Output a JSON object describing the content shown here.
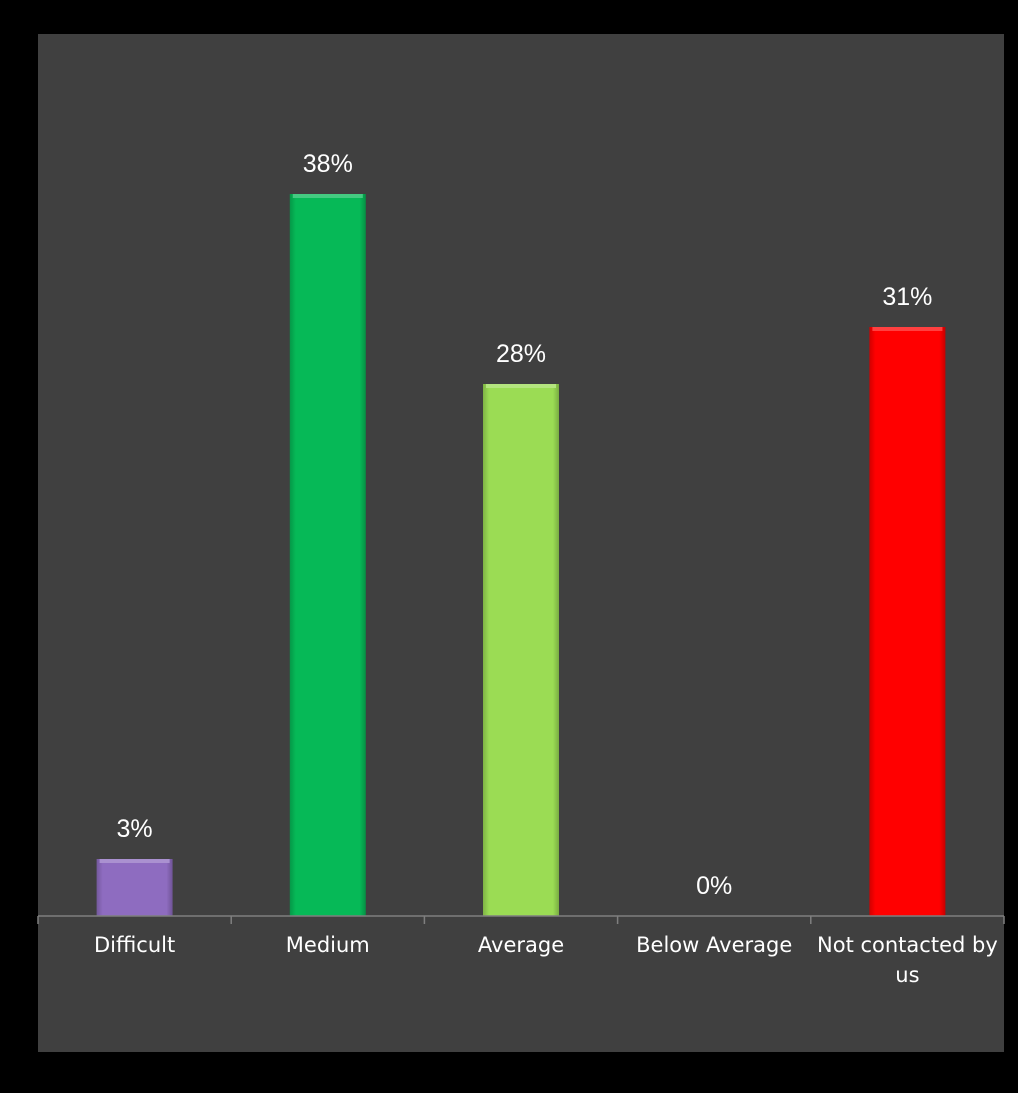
{
  "chart_data": {
    "type": "bar",
    "title": "",
    "xlabel": "",
    "ylabel": "",
    "ylim": [
      0,
      50
    ],
    "grid": false,
    "legend": "none",
    "categories": [
      "Difficult",
      "Medium",
      "Average",
      "Below Average",
      "Not contacted by us"
    ],
    "values": [
      3,
      38,
      28,
      0,
      31
    ],
    "value_labels": [
      "3%",
      "38%",
      "28%",
      "0%",
      "31%"
    ],
    "bar_colors": [
      "#8e6cc0",
      "#06b957",
      "#9bdc54",
      "#8e8e8e",
      "#ff0000"
    ]
  },
  "colors": {
    "page_background": "#000000",
    "plot_background": "#404040",
    "axis_line": "#7f7f7f",
    "text": "#ffffff"
  }
}
